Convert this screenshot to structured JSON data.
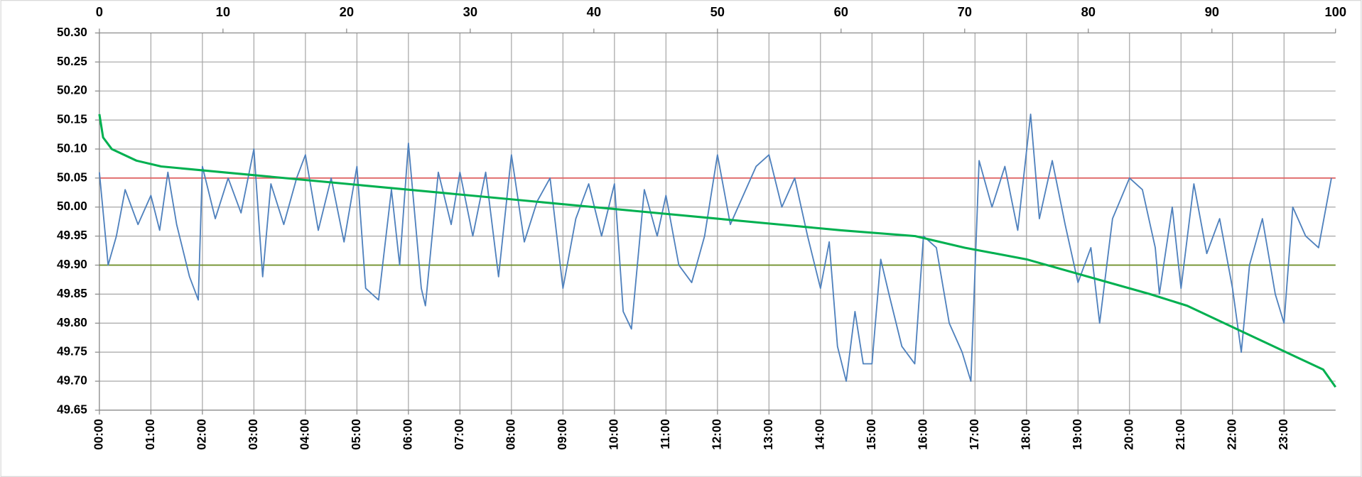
{
  "chart_data": {
    "type": "line",
    "xlim": [
      0,
      24
    ],
    "xticks": [
      {
        "value": 0,
        "label": "00:00"
      },
      {
        "value": 1,
        "label": "01:00"
      },
      {
        "value": 2,
        "label": "02:00"
      },
      {
        "value": 3,
        "label": "03:00"
      },
      {
        "value": 4,
        "label": "04:00"
      },
      {
        "value": 5,
        "label": "05:00"
      },
      {
        "value": 6,
        "label": "06:00"
      },
      {
        "value": 7,
        "label": "07:00"
      },
      {
        "value": 8,
        "label": "08:00"
      },
      {
        "value": 9,
        "label": "09:00"
      },
      {
        "value": 10,
        "label": "10:00"
      },
      {
        "value": 11,
        "label": "11:00"
      },
      {
        "value": 12,
        "label": "12:00"
      },
      {
        "value": 13,
        "label": "13:00"
      },
      {
        "value": 14,
        "label": "14:00"
      },
      {
        "value": 15,
        "label": "15:00"
      },
      {
        "value": 16,
        "label": "16:00"
      },
      {
        "value": 17,
        "label": "17:00"
      },
      {
        "value": 18,
        "label": "18:00"
      },
      {
        "value": 19,
        "label": "19:00"
      },
      {
        "value": 20,
        "label": "20:00"
      },
      {
        "value": 21,
        "label": "21:00"
      },
      {
        "value": 22,
        "label": "22:00"
      },
      {
        "value": 23,
        "label": "23:00"
      }
    ],
    "x2lim": [
      0,
      100
    ],
    "x2ticks": [
      0,
      10,
      20,
      30,
      40,
      50,
      60,
      70,
      80,
      90,
      100
    ],
    "ylim": [
      49.65,
      50.3
    ],
    "yticks": [
      {
        "value": 49.65,
        "label": "49.65"
      },
      {
        "value": 49.7,
        "label": "49.70"
      },
      {
        "value": 49.75,
        "label": "49.75"
      },
      {
        "value": 49.8,
        "label": "49.80"
      },
      {
        "value": 49.85,
        "label": "49.85"
      },
      {
        "value": 49.9,
        "label": "49.90"
      },
      {
        "value": 49.95,
        "label": "49.95"
      },
      {
        "value": 50,
        "label": "50.00"
      },
      {
        "value": 50.05,
        "label": "50.05"
      },
      {
        "value": 50.1,
        "label": "50.10"
      },
      {
        "value": 50.15,
        "label": "50.15"
      },
      {
        "value": 50.2,
        "label": "50.20"
      },
      {
        "value": 50.25,
        "label": "50.25"
      },
      {
        "value": 50.3,
        "label": "50.30"
      }
    ],
    "grid": true,
    "reference_lines": [
      {
        "value": 50.05,
        "color": "#e06666"
      },
      {
        "value": 49.9,
        "color": "#6b8e23"
      }
    ],
    "series": [
      {
        "color": "#4f81bd",
        "x": [
          0,
          0.17,
          0.33,
          0.5,
          0.75,
          1,
          1.17,
          1.33,
          1.5,
          1.75,
          1.92,
          2,
          2.25,
          2.5,
          2.75,
          3,
          3.17,
          3.33,
          3.58,
          3.83,
          4,
          4.25,
          4.5,
          4.75,
          5,
          5.17,
          5.42,
          5.67,
          5.83,
          6,
          6.25,
          6.33,
          6.58,
          6.83,
          7,
          7.25,
          7.5,
          7.75,
          8,
          8.25,
          8.5,
          8.75,
          9,
          9.25,
          9.5,
          9.75,
          10,
          10.17,
          10.33,
          10.58,
          10.83,
          11,
          11.25,
          11.5,
          11.75,
          12,
          12.25,
          12.5,
          12.75,
          13,
          13.25,
          13.5,
          13.75,
          14,
          14.17,
          14.33,
          14.5,
          14.67,
          14.83,
          15,
          15.17,
          15.33,
          15.58,
          15.83,
          16,
          16.25,
          16.5,
          16.75,
          16.92,
          17.08,
          17.33,
          17.58,
          17.83,
          18.08,
          18.25,
          18.5,
          18.75,
          19,
          19.25,
          19.42,
          19.67,
          20,
          20.25,
          20.5,
          20.58,
          20.83,
          21,
          21.25,
          21.5,
          21.75,
          22,
          22.17,
          22.33,
          22.58,
          22.83,
          23,
          23.17,
          23.42,
          23.67,
          23.92
        ],
        "values": [
          50.06,
          49.9,
          49.95,
          50.03,
          49.97,
          50.02,
          49.96,
          50.06,
          49.97,
          49.88,
          49.84,
          50.07,
          49.98,
          50.05,
          49.99,
          50.1,
          49.88,
          50.04,
          49.97,
          50.05,
          50.09,
          49.96,
          50.05,
          49.94,
          50.07,
          49.86,
          49.84,
          50.03,
          49.9,
          50.11,
          49.86,
          49.83,
          50.06,
          49.97,
          50.06,
          49.95,
          50.06,
          49.88,
          50.09,
          49.94,
          50.01,
          50.05,
          49.86,
          49.98,
          50.04,
          49.95,
          50.04,
          49.82,
          49.79,
          50.03,
          49.95,
          50.02,
          49.9,
          49.87,
          49.95,
          50.09,
          49.97,
          50.02,
          50.07,
          50.09,
          50,
          50.05,
          49.95,
          49.86,
          49.94,
          49.76,
          49.7,
          49.82,
          49.73,
          49.73,
          49.91,
          49.85,
          49.76,
          49.73,
          49.95,
          49.93,
          49.8,
          49.75,
          49.7,
          50.08,
          50,
          50.07,
          49.96,
          50.16,
          49.98,
          50.08,
          49.97,
          49.87,
          49.93,
          49.8,
          49.98,
          50.05,
          50.03,
          49.93,
          49.85,
          50,
          49.86,
          50.04,
          49.92,
          49.98,
          49.86,
          49.75,
          49.9,
          49.98,
          49.85,
          49.8,
          50,
          49.95,
          49.93,
          50.05
        ]
      },
      {
        "color": "#00b050",
        "axis": "x2",
        "x": [
          0,
          0.3,
          1,
          3,
          5,
          10,
          20,
          30,
          40,
          50,
          55,
          60,
          66,
          70,
          75,
          80,
          85,
          88,
          92,
          95,
          97,
          99,
          100
        ],
        "values": [
          50.16,
          50.12,
          50.1,
          50.08,
          50.07,
          50.06,
          50.04,
          50.02,
          50,
          49.98,
          49.97,
          49.96,
          49.95,
          49.93,
          49.91,
          49.88,
          49.85,
          49.83,
          49.79,
          49.76,
          49.74,
          49.72,
          49.69
        ]
      }
    ]
  }
}
